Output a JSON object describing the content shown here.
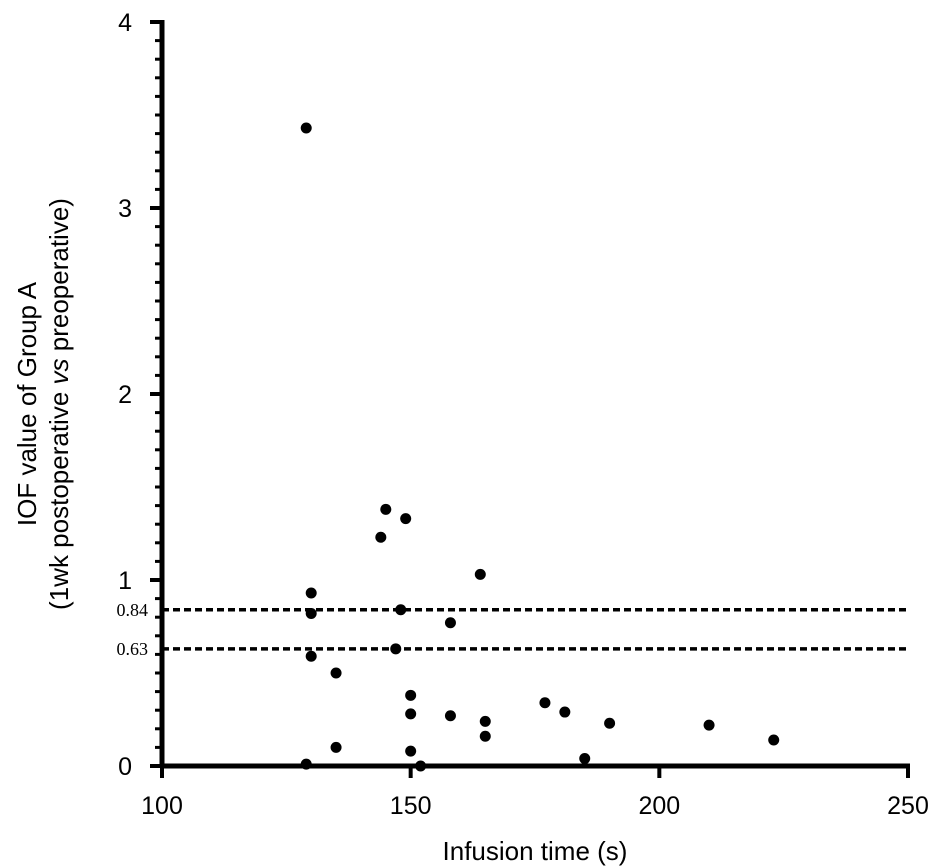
{
  "chart_data": {
    "type": "scatter",
    "xlabel": "Infusion time (s)",
    "ylabel": {
      "line1": "IOF value of Group A",
      "line2_pre": "(1wk postoperative ",
      "line2_italic": "vs",
      "line2_post": " preoperative)"
    },
    "xlim": [
      100,
      250
    ],
    "ylim": [
      0,
      4
    ],
    "x_ticks": [
      {
        "value": 100,
        "label": "100"
      },
      {
        "value": 150,
        "label": "150"
      },
      {
        "value": 200,
        "label": "200"
      },
      {
        "value": 250,
        "label": "250"
      }
    ],
    "y_ticks": [
      {
        "value": 0,
        "label": "0"
      },
      {
        "value": 1,
        "label": "1"
      },
      {
        "value": 2,
        "label": "2"
      },
      {
        "value": 3,
        "label": "3"
      },
      {
        "value": 4,
        "label": "4"
      }
    ],
    "y_minor_step": 0.1,
    "reference_lines": [
      {
        "y": 0.84,
        "label": "0.84",
        "style": "dashed"
      },
      {
        "y": 0.63,
        "label": "0.63",
        "style": "dashed"
      }
    ],
    "grid": false,
    "points": [
      {
        "x": 129,
        "y": 3.43
      },
      {
        "x": 129,
        "y": 0.01
      },
      {
        "x": 130,
        "y": 0.93
      },
      {
        "x": 130,
        "y": 0.82
      },
      {
        "x": 130,
        "y": 0.59
      },
      {
        "x": 135,
        "y": 0.5
      },
      {
        "x": 135,
        "y": 0.1
      },
      {
        "x": 144,
        "y": 1.23
      },
      {
        "x": 145,
        "y": 1.38
      },
      {
        "x": 147,
        "y": 0.63
      },
      {
        "x": 148,
        "y": 0.84
      },
      {
        "x": 149,
        "y": 1.33
      },
      {
        "x": 150,
        "y": 0.38
      },
      {
        "x": 150,
        "y": 0.28
      },
      {
        "x": 150,
        "y": 0.08
      },
      {
        "x": 152,
        "y": 0.0
      },
      {
        "x": 158,
        "y": 0.77
      },
      {
        "x": 158,
        "y": 0.27
      },
      {
        "x": 164,
        "y": 1.03
      },
      {
        "x": 165,
        "y": 0.24
      },
      {
        "x": 165,
        "y": 0.16
      },
      {
        "x": 177,
        "y": 0.34
      },
      {
        "x": 181,
        "y": 0.29
      },
      {
        "x": 185,
        "y": 0.04
      },
      {
        "x": 190,
        "y": 0.23
      },
      {
        "x": 210,
        "y": 0.22
      },
      {
        "x": 223,
        "y": 0.14
      }
    ]
  }
}
